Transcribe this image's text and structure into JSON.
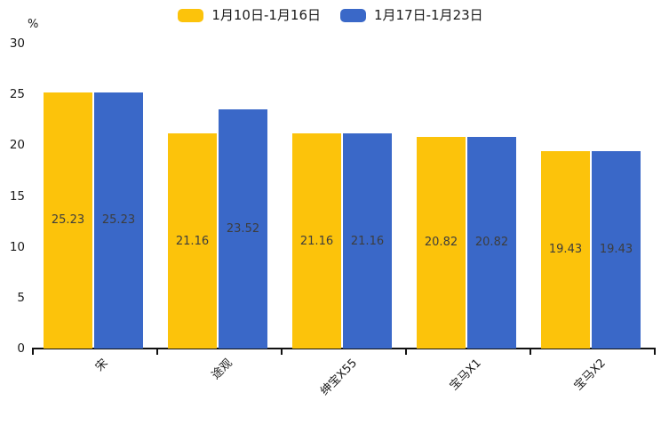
{
  "chart_data": {
    "type": "bar",
    "title": "",
    "unit_label": "%",
    "categories": [
      "宋",
      "途观",
      "绅宝X55",
      "宝马X1",
      "宝马X2"
    ],
    "series": [
      {
        "name": "1月10日-1月16日",
        "color": "#FCC30B",
        "values": [
          25.23,
          21.16,
          21.16,
          20.82,
          19.43
        ]
      },
      {
        "name": "1月17日-1月23日",
        "color": "#3A68C8",
        "values": [
          25.23,
          23.52,
          21.16,
          20.82,
          19.43
        ]
      }
    ],
    "value_label_format": "2-decimals",
    "yticks": [
      0,
      5,
      10,
      15,
      20,
      25,
      30
    ],
    "ylim": [
      0,
      30
    ],
    "legend_position": "top-center",
    "grid": false,
    "bar_value_label_position": "inside-center"
  },
  "colors": {
    "axis": "#111111",
    "value_label": "#3d3d3d",
    "tick_label": "#1a1a1a"
  }
}
